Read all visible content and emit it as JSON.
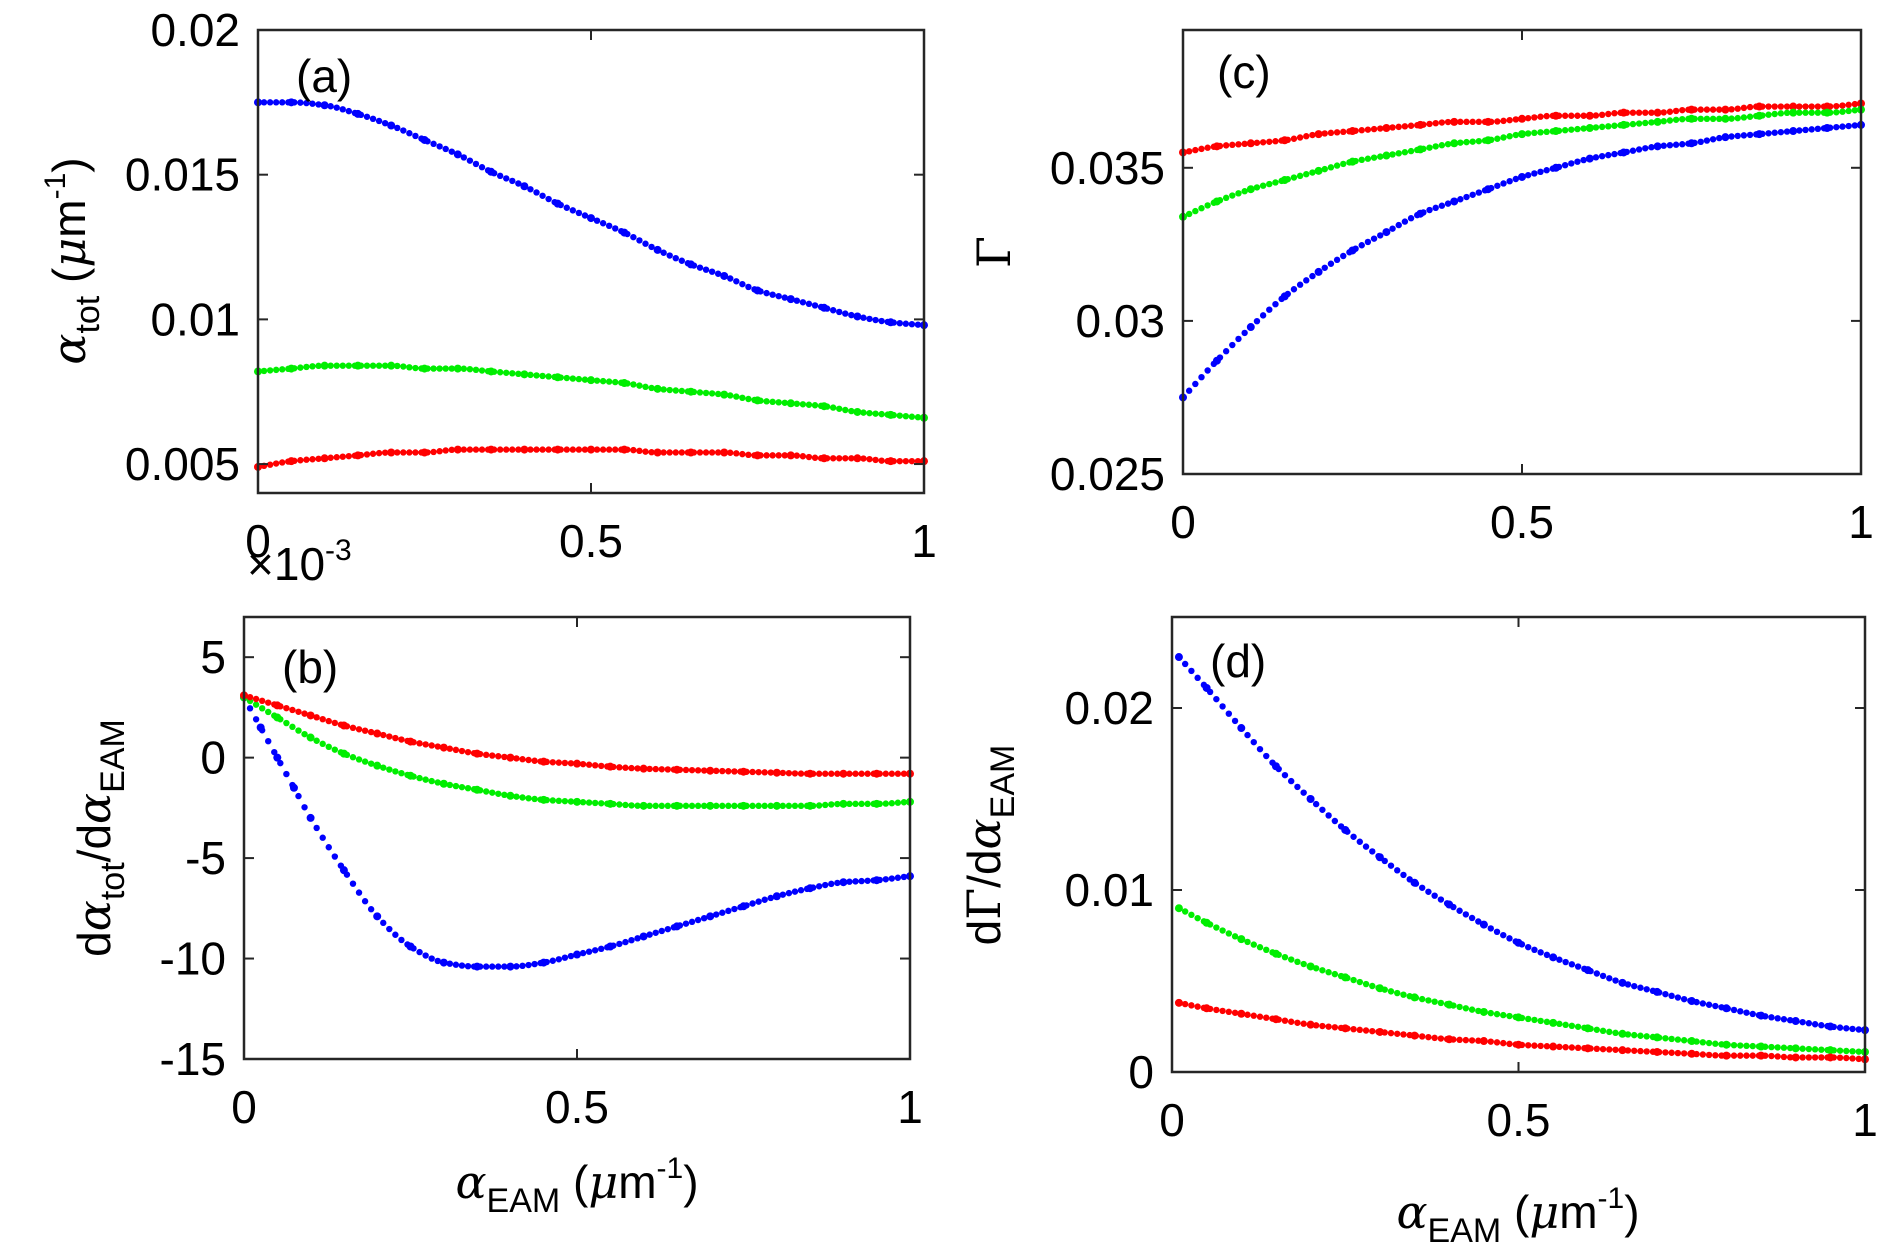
{
  "chart_data": [
    {
      "id": "a",
      "type": "scatter",
      "panel_label": "(a)",
      "xlabel": "",
      "ylabel": {
        "sym": "α",
        "sub": "tot",
        "unit_open": " (",
        "unit_mu": "μ",
        "unit_m": "m",
        "sup": "-1",
        "unit_close": ")"
      },
      "xlim": [
        0,
        1
      ],
      "ylim": [
        0.004,
        0.02
      ],
      "xticks": [
        0,
        0.5,
        1
      ],
      "xtick_labels": [
        "0",
        "0.5",
        "1"
      ],
      "yticks": [
        0.005,
        0.01,
        0.015,
        0.02
      ],
      "ytick_labels": [
        "0.005",
        "0.01",
        "0.015",
        "0.02"
      ],
      "exponent_label": {
        "prefix": "×10",
        "sup": "-3"
      },
      "series": [
        {
          "color": "#0000ff",
          "x": [
            0,
            0.05,
            0.1,
            0.15,
            0.2,
            0.25,
            0.3,
            0.35,
            0.4,
            0.45,
            0.5,
            0.55,
            0.6,
            0.65,
            0.7,
            0.75,
            0.8,
            0.85,
            0.9,
            0.95,
            1
          ],
          "y": [
            0.0175,
            0.0175,
            0.0174,
            0.0171,
            0.0167,
            0.0162,
            0.0157,
            0.0151,
            0.0146,
            0.014,
            0.0135,
            0.013,
            0.0124,
            0.0119,
            0.0115,
            0.011,
            0.0107,
            0.0104,
            0.0101,
            0.0099,
            0.0098
          ]
        },
        {
          "color": "#00ee00",
          "x": [
            0,
            0.05,
            0.1,
            0.15,
            0.2,
            0.25,
            0.3,
            0.35,
            0.4,
            0.45,
            0.5,
            0.55,
            0.6,
            0.65,
            0.7,
            0.75,
            0.8,
            0.85,
            0.9,
            0.95,
            1
          ],
          "y": [
            0.0082,
            0.0083,
            0.0084,
            0.0084,
            0.0084,
            0.0083,
            0.0083,
            0.0082,
            0.0081,
            0.008,
            0.0079,
            0.0078,
            0.0076,
            0.0075,
            0.0074,
            0.0072,
            0.0071,
            0.007,
            0.0068,
            0.0067,
            0.0066
          ]
        },
        {
          "color": "#ff0000",
          "x": [
            0,
            0.05,
            0.1,
            0.15,
            0.2,
            0.25,
            0.3,
            0.35,
            0.4,
            0.45,
            0.5,
            0.55,
            0.6,
            0.65,
            0.7,
            0.75,
            0.8,
            0.85,
            0.9,
            0.95,
            1
          ],
          "y": [
            0.0049,
            0.0051,
            0.0052,
            0.0053,
            0.0054,
            0.0054,
            0.0055,
            0.0055,
            0.0055,
            0.0055,
            0.0055,
            0.0055,
            0.0054,
            0.0054,
            0.0054,
            0.0053,
            0.0053,
            0.0052,
            0.0052,
            0.0051,
            0.0051
          ]
        }
      ]
    },
    {
      "id": "b",
      "type": "scatter",
      "panel_label": "(b)",
      "xlabel": {
        "sym": "α",
        "sub": "EAM",
        "unit_open": " (",
        "unit_mu": "μ",
        "unit_m": "m",
        "sup": "-1",
        "unit_close": ")"
      },
      "ylabel": {
        "d1": "d",
        "sym1": "α",
        "sub1": "tot",
        "slash": "/d",
        "sym2": "α",
        "sub2": "EAM"
      },
      "xlim": [
        0,
        1
      ],
      "ylim": [
        -15,
        7
      ],
      "xticks": [
        0,
        0.5,
        1
      ],
      "xtick_labels": [
        "0",
        "0.5",
        "1"
      ],
      "yticks": [
        -15,
        -10,
        -5,
        0,
        5
      ],
      "ytick_labels": [
        "-15",
        "-10",
        "-5",
        "0",
        "5"
      ],
      "series": [
        {
          "color": "#0000ff",
          "x": [
            0,
            0.025,
            0.05,
            0.075,
            0.1,
            0.15,
            0.2,
            0.25,
            0.3,
            0.35,
            0.4,
            0.45,
            0.5,
            0.55,
            0.6,
            0.65,
            0.7,
            0.75,
            0.8,
            0.85,
            0.9,
            0.95,
            1
          ],
          "y": [
            3.0,
            1.5,
            0.0,
            -1.5,
            -3.0,
            -5.6,
            -7.9,
            -9.4,
            -10.2,
            -10.4,
            -10.4,
            -10.2,
            -9.8,
            -9.4,
            -8.9,
            -8.4,
            -7.9,
            -7.4,
            -6.9,
            -6.5,
            -6.2,
            -6.1,
            -5.9
          ]
        },
        {
          "color": "#00ee00",
          "x": [
            0,
            0.05,
            0.1,
            0.15,
            0.2,
            0.25,
            0.3,
            0.35,
            0.4,
            0.45,
            0.5,
            0.55,
            0.6,
            0.65,
            0.7,
            0.75,
            0.8,
            0.85,
            0.9,
            0.95,
            1
          ],
          "y": [
            3.0,
            2.0,
            1.0,
            0.2,
            -0.4,
            -0.9,
            -1.3,
            -1.6,
            -1.9,
            -2.1,
            -2.2,
            -2.3,
            -2.4,
            -2.4,
            -2.4,
            -2.4,
            -2.4,
            -2.4,
            -2.3,
            -2.3,
            -2.2
          ]
        },
        {
          "color": "#ff0000",
          "x": [
            0,
            0.05,
            0.1,
            0.15,
            0.2,
            0.25,
            0.3,
            0.35,
            0.4,
            0.45,
            0.5,
            0.55,
            0.6,
            0.65,
            0.7,
            0.75,
            0.8,
            0.85,
            0.9,
            0.95,
            1
          ],
          "y": [
            3.1,
            2.6,
            2.1,
            1.6,
            1.2,
            0.8,
            0.5,
            0.2,
            0.0,
            -0.2,
            -0.3,
            -0.45,
            -0.55,
            -0.6,
            -0.65,
            -0.7,
            -0.75,
            -0.8,
            -0.8,
            -0.8,
            -0.8
          ]
        }
      ]
    },
    {
      "id": "c",
      "type": "scatter",
      "panel_label": "(c)",
      "xlabel": "",
      "ylabel": {
        "sym": "Γ"
      },
      "xlim": [
        0,
        1
      ],
      "ylim": [
        0.025,
        0.0395
      ],
      "xticks": [
        0,
        0.5,
        1
      ],
      "xtick_labels": [
        "0",
        "0.5",
        "1"
      ],
      "yticks": [
        0.025,
        0.03,
        0.035
      ],
      "ytick_labels": [
        "0.025",
        "0.03",
        "0.035"
      ],
      "series": [
        {
          "color": "#ff0000",
          "x": [
            0,
            0.05,
            0.1,
            0.15,
            0.2,
            0.25,
            0.3,
            0.35,
            0.4,
            0.45,
            0.5,
            0.55,
            0.6,
            0.65,
            0.7,
            0.75,
            0.8,
            0.85,
            0.9,
            0.95,
            1
          ],
          "y": [
            0.0355,
            0.0357,
            0.0358,
            0.0359,
            0.0361,
            0.0362,
            0.0363,
            0.0364,
            0.0365,
            0.0365,
            0.0366,
            0.0367,
            0.0367,
            0.0368,
            0.0368,
            0.0369,
            0.0369,
            0.037,
            0.037,
            0.037,
            0.0371
          ]
        },
        {
          "color": "#00ee00",
          "x": [
            0,
            0.05,
            0.1,
            0.15,
            0.2,
            0.25,
            0.3,
            0.35,
            0.4,
            0.45,
            0.5,
            0.55,
            0.6,
            0.65,
            0.7,
            0.75,
            0.8,
            0.85,
            0.9,
            0.95,
            1
          ],
          "y": [
            0.0334,
            0.0339,
            0.0343,
            0.0346,
            0.0349,
            0.0352,
            0.0354,
            0.0356,
            0.0358,
            0.0359,
            0.0361,
            0.0362,
            0.0363,
            0.0364,
            0.0365,
            0.0366,
            0.0366,
            0.0367,
            0.0368,
            0.0368,
            0.0369
          ]
        },
        {
          "color": "#0000ff",
          "x": [
            0,
            0.05,
            0.1,
            0.15,
            0.2,
            0.25,
            0.3,
            0.35,
            0.4,
            0.45,
            0.5,
            0.55,
            0.6,
            0.65,
            0.7,
            0.75,
            0.8,
            0.85,
            0.9,
            0.95,
            1
          ],
          "y": [
            0.0275,
            0.0287,
            0.0298,
            0.0308,
            0.0316,
            0.0323,
            0.0329,
            0.0335,
            0.0339,
            0.0343,
            0.0347,
            0.035,
            0.0353,
            0.0355,
            0.0357,
            0.0358,
            0.036,
            0.0361,
            0.0362,
            0.0363,
            0.0364
          ]
        }
      ]
    },
    {
      "id": "d",
      "type": "scatter",
      "panel_label": "(d)",
      "xlabel": {
        "sym": "α",
        "sub": "EAM",
        "unit_open": " (",
        "unit_mu": "μ",
        "unit_m": "m",
        "sup": "-1",
        "unit_close": ")"
      },
      "ylabel": {
        "d1": "d",
        "sym1": "Γ",
        "slash": "/d",
        "sym2": "α",
        "sub2": "EAM"
      },
      "xlim": [
        0,
        1
      ],
      "ylim": [
        0,
        0.025
      ],
      "xticks": [
        0,
        0.5,
        1
      ],
      "xtick_labels": [
        "0",
        "0.5",
        "1"
      ],
      "yticks": [
        0,
        0.01,
        0.02
      ],
      "ytick_labels": [
        "0",
        "0.01",
        "0.02"
      ],
      "series": [
        {
          "color": "#0000ff",
          "x": [
            0.01,
            0.05,
            0.1,
            0.15,
            0.2,
            0.25,
            0.3,
            0.35,
            0.4,
            0.45,
            0.5,
            0.55,
            0.6,
            0.65,
            0.7,
            0.75,
            0.8,
            0.85,
            0.9,
            0.95,
            1
          ],
          "y": [
            0.0228,
            0.0211,
            0.0189,
            0.0168,
            0.015,
            0.0133,
            0.0118,
            0.0104,
            0.0092,
            0.0081,
            0.0071,
            0.0063,
            0.0056,
            0.0049,
            0.0044,
            0.0039,
            0.0035,
            0.0031,
            0.0028,
            0.0025,
            0.0023
          ]
        },
        {
          "color": "#00ee00",
          "x": [
            0.01,
            0.05,
            0.1,
            0.15,
            0.2,
            0.25,
            0.3,
            0.35,
            0.4,
            0.45,
            0.5,
            0.55,
            0.6,
            0.65,
            0.7,
            0.75,
            0.8,
            0.85,
            0.9,
            0.95,
            1
          ],
          "y": [
            0.009,
            0.0082,
            0.0073,
            0.0065,
            0.0058,
            0.0052,
            0.0046,
            0.0041,
            0.0037,
            0.0033,
            0.003,
            0.0027,
            0.0024,
            0.0021,
            0.0019,
            0.0017,
            0.0015,
            0.0014,
            0.0013,
            0.0012,
            0.0011
          ]
        },
        {
          "color": "#ff0000",
          "x": [
            0.01,
            0.05,
            0.1,
            0.15,
            0.2,
            0.25,
            0.3,
            0.35,
            0.4,
            0.45,
            0.5,
            0.55,
            0.6,
            0.65,
            0.7,
            0.75,
            0.8,
            0.85,
            0.9,
            0.95,
            1
          ],
          "y": [
            0.0038,
            0.0035,
            0.0032,
            0.0029,
            0.0026,
            0.0024,
            0.0022,
            0.002,
            0.0018,
            0.0017,
            0.0015,
            0.0014,
            0.0013,
            0.0012,
            0.0011,
            0.001,
            0.0009,
            0.0009,
            0.0008,
            0.0008,
            0.0007
          ]
        }
      ]
    }
  ]
}
